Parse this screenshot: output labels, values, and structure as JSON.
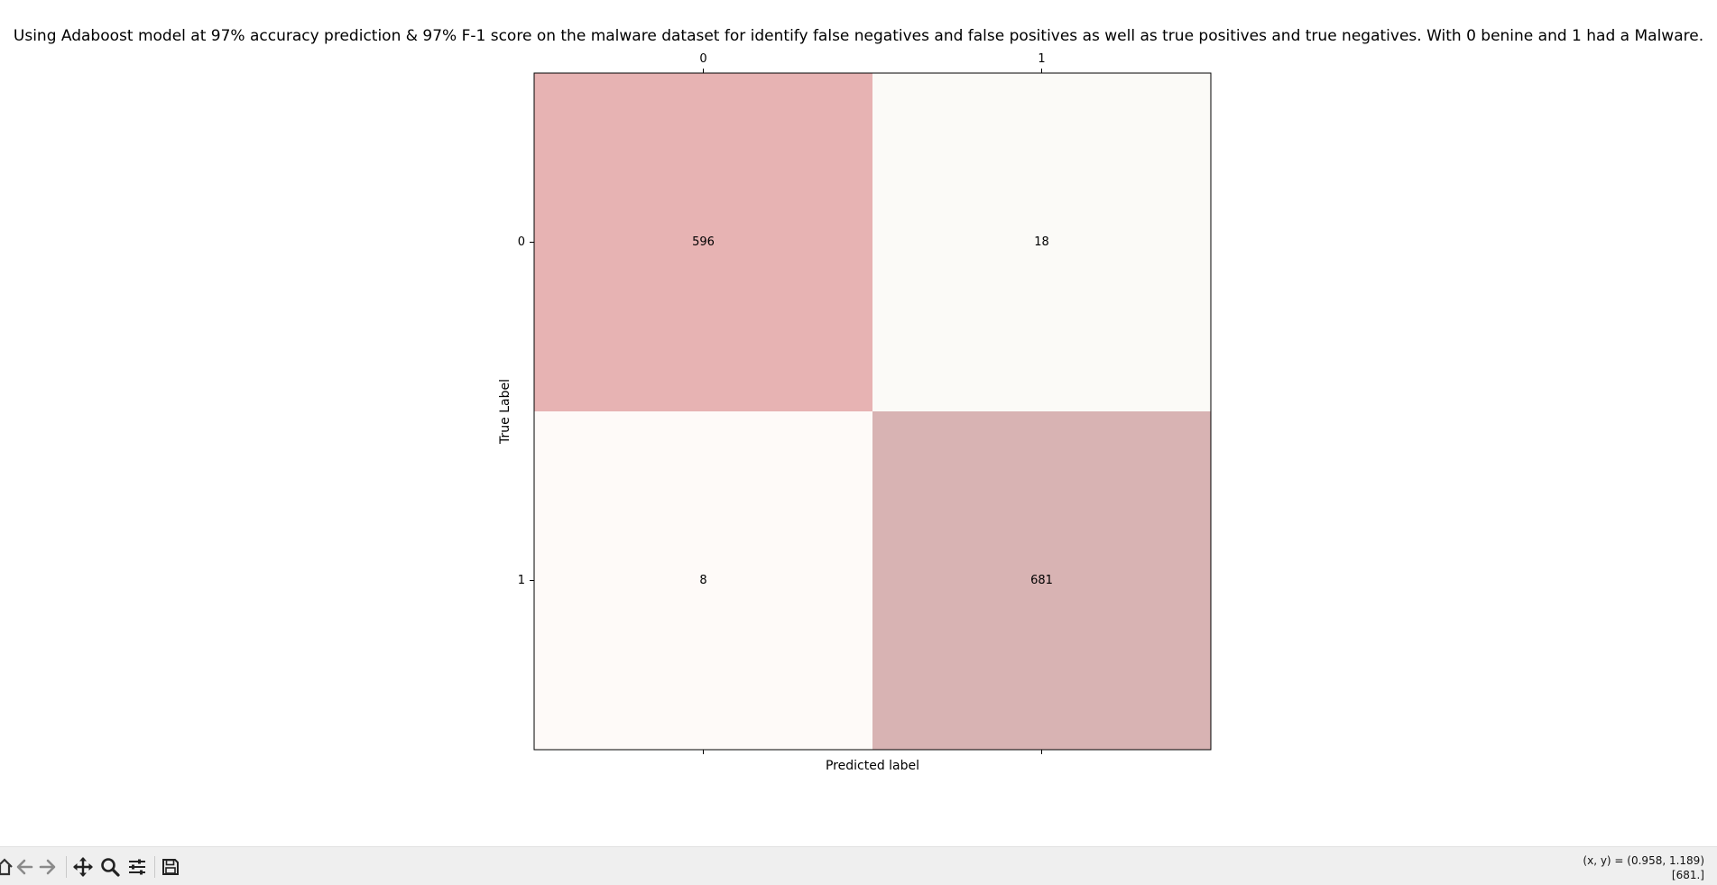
{
  "figure": {
    "title": "Using Adaboost model at 97% accuracy prediction & 97% F-1 score on the malware dataset for identify false negatives and false positives as well as true positives and true negatives. With 0 benine and 1 had a Malware."
  },
  "chart_data": {
    "type": "heatmap",
    "title": "Using Adaboost model at 97% accuracy prediction & 97% F-1 score on the malware dataset for identify false negatives and false positives as well as true positives and true negatives. With 0 benine and 1 had a Malware.",
    "xlabel": "Predicted label",
    "ylabel": "True Label",
    "x_categories": [
      "0",
      "1"
    ],
    "y_categories": [
      "0",
      "1"
    ],
    "values": [
      [
        596,
        18
      ],
      [
        8,
        681
      ]
    ],
    "colors": [
      [
        "#e7b3b3",
        "#fbfaf7"
      ],
      [
        "#fefaf8",
        "#d8b3b3"
      ]
    ],
    "x_tick_position": "top"
  },
  "toolbar": {
    "icons": [
      "home-icon",
      "back-arrow-icon",
      "forward-arrow-icon",
      "pan-icon",
      "zoom-icon",
      "configure-subplots-icon",
      "save-icon"
    ]
  },
  "status": {
    "coords": "(x, y) = (0.958, 1.189)",
    "value": "[681.]"
  }
}
